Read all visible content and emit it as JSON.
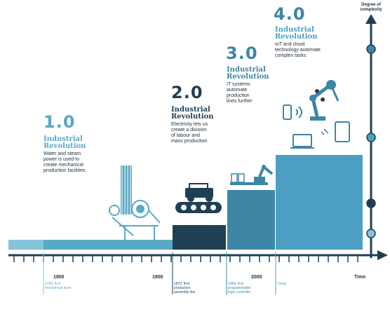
{
  "colors": {
    "dark_navy": "#1f3f54",
    "mid_teal": "#3d86a6",
    "light_teal": "#4c9fc2",
    "pale_teal": "#86c3d8",
    "text_dark": "#1f2e3a",
    "accent": "#5aa9c4"
  },
  "axis": {
    "y_label": "Degree of complexity",
    "x_label": "Time",
    "ticks": [
      "1800",
      "1900",
      "2000",
      "Today"
    ]
  },
  "stages": [
    {
      "number": "1.0",
      "heading_line1": "Industrial",
      "heading_line2": "Revolution",
      "description": [
        "Water and steam",
        "power is used to",
        "create mechanical",
        "production facilities"
      ],
      "icon": "loom-icon",
      "caption": [
        "1784: first",
        "mechanical loom"
      ]
    },
    {
      "number": "2.0",
      "heading_line1": "Industrial",
      "heading_line2": "Revolution",
      "description": [
        "Electricity lets us",
        "create a division",
        "of labour and",
        "mass production"
      ],
      "icon": "assembly-line-car-icon",
      "caption": [
        "1870: first",
        "production",
        "assembly line"
      ]
    },
    {
      "number": "3.0",
      "heading_line1": "Industrial",
      "heading_line2": "Revolution",
      "description": [
        "IT systems",
        "automate",
        "production",
        "lines further"
      ],
      "icon": "robot-arm-icon",
      "caption": [
        "1969: first",
        "programmable",
        "logic controller"
      ]
    },
    {
      "number": "4.0",
      "heading_line1": "Industrial",
      "heading_line2": "Revolution",
      "description": [
        "IoT and cloud",
        "technology automate",
        "complex tasks"
      ],
      "icon": "connected-devices-icon",
      "caption": [
        "Today"
      ]
    }
  ]
}
